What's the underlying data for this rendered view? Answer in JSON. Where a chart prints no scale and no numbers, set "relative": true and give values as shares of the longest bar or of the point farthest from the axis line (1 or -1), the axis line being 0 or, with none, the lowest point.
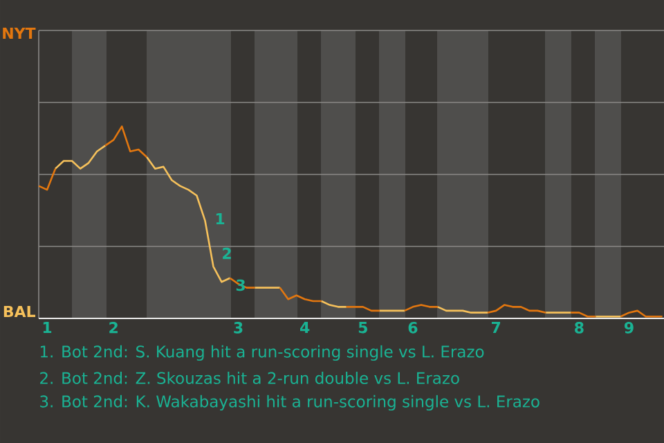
{
  "chart_data": {
    "type": "line",
    "relative": true,
    "categories": [
      null,
      "1",
      null,
      null,
      null,
      null,
      null,
      null,
      null,
      "2",
      null,
      null,
      null,
      null,
      null,
      null,
      null,
      null,
      null,
      null,
      null,
      null,
      null,
      null,
      "3",
      null,
      null,
      null,
      null,
      null,
      null,
      null,
      "4",
      null,
      null,
      null,
      null,
      null,
      null,
      "5",
      null,
      null,
      null,
      null,
      null,
      "6",
      null,
      null,
      null,
      null,
      null,
      null,
      null,
      null,
      null,
      "7",
      null,
      null,
      null,
      null,
      null,
      null,
      null,
      null,
      null,
      "8",
      null,
      null,
      null,
      null,
      null,
      "9",
      null,
      null,
      null,
      null
    ],
    "marker": "none",
    "line_style": "solid",
    "ref_lines": [
      {
        "axis": "y",
        "value": 0.375,
        "color": "#8a8886"
      },
      {
        "axis": "y",
        "value": 0.75,
        "color": "#8a8886"
      },
      {
        "axis": "y",
        "value": 1.125,
        "color": "#8a8886"
      },
      {
        "axis": "y",
        "value": 1.5,
        "color": "#8a8886"
      }
    ],
    "series": [
      {
        "color": "#e3770f",
        "values": [
          0.69,
          0.67,
          0.78,
          null,
          null,
          null,
          null,
          null,
          null,
          null,
          null,
          null,
          null,
          null,
          null,
          null,
          null,
          null,
          null,
          null,
          null,
          null,
          null,
          null,
          null,
          null,
          null,
          null,
          null,
          null,
          null,
          null,
          null,
          null,
          null,
          null,
          null,
          null,
          null,
          null,
          null,
          null,
          null,
          null,
          null,
          null,
          null,
          null,
          null,
          null,
          null,
          null,
          null,
          null,
          null,
          null,
          null,
          null,
          null,
          null,
          null,
          null,
          null,
          null,
          null,
          null,
          null,
          null,
          null,
          null,
          null,
          null,
          null,
          null,
          null,
          null
        ]
      },
      {
        "color": "#f6c15b",
        "values": [
          null,
          null,
          0.78,
          0.82,
          0.82,
          0.78,
          0.81,
          0.87,
          0.9,
          null,
          null,
          null,
          null,
          null,
          null,
          null,
          null,
          null,
          null,
          null,
          null,
          null,
          null,
          null,
          null,
          null,
          null,
          null,
          null,
          null,
          null,
          null,
          null,
          null,
          null,
          null,
          null,
          null,
          null,
          null,
          null,
          null,
          null,
          null,
          null,
          null,
          null,
          null,
          null,
          null,
          null,
          null,
          null,
          null,
          null,
          null,
          null,
          null,
          null,
          null,
          null,
          null,
          null,
          null,
          null,
          null,
          null,
          null,
          null,
          null,
          null,
          null,
          null,
          null,
          null,
          null
        ]
      },
      {
        "color": "#e3770f",
        "values": [
          null,
          null,
          null,
          null,
          null,
          null,
          null,
          null,
          0.9,
          0.93,
          1,
          0.87,
          0.88,
          0.84,
          null,
          null,
          null,
          null,
          null,
          null,
          null,
          null,
          null,
          null,
          null,
          null,
          null,
          null,
          null,
          null,
          null,
          null,
          null,
          null,
          null,
          null,
          null,
          null,
          null,
          null,
          null,
          null,
          null,
          null,
          null,
          null,
          null,
          null,
          null,
          null,
          null,
          null,
          null,
          null,
          null,
          null,
          null,
          null,
          null,
          null,
          null,
          null,
          null,
          null,
          null,
          null,
          null,
          null,
          null,
          null,
          null,
          null,
          null,
          null,
          null,
          null
        ]
      },
      {
        "color": "#f6c15b",
        "values": [
          null,
          null,
          null,
          null,
          null,
          null,
          null,
          null,
          null,
          null,
          null,
          null,
          null,
          0.84,
          0.78,
          0.79,
          0.72,
          0.69,
          0.67,
          0.64,
          0.51,
          0.27,
          0.19,
          0.21,
          null,
          null,
          null,
          null,
          null,
          null,
          null,
          null,
          null,
          null,
          null,
          null,
          null,
          null,
          null,
          null,
          null,
          null,
          null,
          null,
          null,
          null,
          null,
          null,
          null,
          null,
          null,
          null,
          null,
          null,
          null,
          null,
          null,
          null,
          null,
          null,
          null,
          null,
          null,
          null,
          null,
          null,
          null,
          null,
          null,
          null,
          null,
          null,
          null,
          null,
          null,
          null
        ]
      },
      {
        "color": "#e3770f",
        "values": [
          null,
          null,
          null,
          null,
          null,
          null,
          null,
          null,
          null,
          null,
          null,
          null,
          null,
          null,
          null,
          null,
          null,
          null,
          null,
          null,
          null,
          null,
          null,
          0.21,
          0.18,
          0.16,
          0.16,
          null,
          null,
          null,
          null,
          null,
          null,
          null,
          null,
          null,
          null,
          null,
          null,
          null,
          null,
          null,
          null,
          null,
          null,
          null,
          null,
          null,
          null,
          null,
          null,
          null,
          null,
          null,
          null,
          null,
          null,
          null,
          null,
          null,
          null,
          null,
          null,
          null,
          null,
          null,
          null,
          null,
          null,
          null,
          null,
          null,
          null,
          null,
          null,
          null
        ]
      },
      {
        "color": "#f6c15b",
        "values": [
          null,
          null,
          null,
          null,
          null,
          null,
          null,
          null,
          null,
          null,
          null,
          null,
          null,
          null,
          null,
          null,
          null,
          null,
          null,
          null,
          null,
          null,
          null,
          null,
          null,
          null,
          0.16,
          0.16,
          0.16,
          0.16,
          null,
          null,
          null,
          null,
          null,
          null,
          null,
          null,
          null,
          null,
          null,
          null,
          null,
          null,
          null,
          null,
          null,
          null,
          null,
          null,
          null,
          null,
          null,
          null,
          null,
          null,
          null,
          null,
          null,
          null,
          null,
          null,
          null,
          null,
          null,
          null,
          null,
          null,
          null,
          null,
          null,
          null,
          null,
          null,
          null,
          null
        ]
      },
      {
        "color": "#e3770f",
        "values": [
          null,
          null,
          null,
          null,
          null,
          null,
          null,
          null,
          null,
          null,
          null,
          null,
          null,
          null,
          null,
          null,
          null,
          null,
          null,
          null,
          null,
          null,
          null,
          null,
          null,
          null,
          null,
          null,
          null,
          0.16,
          0.1,
          0.12,
          0.1,
          0.09,
          0.09,
          null,
          null,
          null,
          null,
          null,
          null,
          null,
          null,
          null,
          null,
          null,
          null,
          null,
          null,
          null,
          null,
          null,
          null,
          null,
          null,
          null,
          null,
          null,
          null,
          null,
          null,
          null,
          null,
          null,
          null,
          null,
          null,
          null,
          null,
          null,
          null,
          null,
          null,
          null,
          null,
          null
        ]
      },
      {
        "color": "#f6c15b",
        "values": [
          null,
          null,
          null,
          null,
          null,
          null,
          null,
          null,
          null,
          null,
          null,
          null,
          null,
          null,
          null,
          null,
          null,
          null,
          null,
          null,
          null,
          null,
          null,
          null,
          null,
          null,
          null,
          null,
          null,
          null,
          null,
          null,
          null,
          null,
          0.09,
          0.07,
          0.06,
          0.06,
          null,
          null,
          null,
          null,
          null,
          null,
          null,
          null,
          null,
          null,
          null,
          null,
          null,
          null,
          null,
          null,
          null,
          null,
          null,
          null,
          null,
          null,
          null,
          null,
          null,
          null,
          null,
          null,
          null,
          null,
          null,
          null,
          null,
          null,
          null,
          null,
          null,
          null
        ]
      },
      {
        "color": "#e3770f",
        "values": [
          null,
          null,
          null,
          null,
          null,
          null,
          null,
          null,
          null,
          null,
          null,
          null,
          null,
          null,
          null,
          null,
          null,
          null,
          null,
          null,
          null,
          null,
          null,
          null,
          null,
          null,
          null,
          null,
          null,
          null,
          null,
          null,
          null,
          null,
          null,
          null,
          null,
          0.06,
          0.06,
          0.06,
          0.04,
          0.04,
          null,
          null,
          null,
          null,
          null,
          null,
          null,
          null,
          null,
          null,
          null,
          null,
          null,
          null,
          null,
          null,
          null,
          null,
          null,
          null,
          null,
          null,
          null,
          null,
          null,
          null,
          null,
          null,
          null,
          null,
          null,
          null,
          null,
          null
        ]
      },
      {
        "color": "#f6c15b",
        "values": [
          null,
          null,
          null,
          null,
          null,
          null,
          null,
          null,
          null,
          null,
          null,
          null,
          null,
          null,
          null,
          null,
          null,
          null,
          null,
          null,
          null,
          null,
          null,
          null,
          null,
          null,
          null,
          null,
          null,
          null,
          null,
          null,
          null,
          null,
          null,
          null,
          null,
          null,
          null,
          null,
          null,
          0.04,
          0.04,
          0.04,
          0.04,
          null,
          null,
          null,
          null,
          null,
          null,
          null,
          null,
          null,
          null,
          null,
          null,
          null,
          null,
          null,
          null,
          null,
          null,
          null,
          null,
          null,
          null,
          null,
          null,
          null,
          null,
          null,
          null,
          null,
          null,
          null
        ]
      },
      {
        "color": "#e3770f",
        "values": [
          null,
          null,
          null,
          null,
          null,
          null,
          null,
          null,
          null,
          null,
          null,
          null,
          null,
          null,
          null,
          null,
          null,
          null,
          null,
          null,
          null,
          null,
          null,
          null,
          null,
          null,
          null,
          null,
          null,
          null,
          null,
          null,
          null,
          null,
          null,
          null,
          null,
          null,
          null,
          null,
          null,
          null,
          null,
          null,
          0.04,
          0.06,
          0.07,
          0.06,
          0.06,
          null,
          null,
          null,
          null,
          null,
          null,
          null,
          null,
          null,
          null,
          null,
          null,
          null,
          null,
          null,
          null,
          null,
          null,
          null,
          null,
          null,
          null,
          null,
          null,
          null,
          null,
          null
        ]
      },
      {
        "color": "#f6c15b",
        "values": [
          null,
          null,
          null,
          null,
          null,
          null,
          null,
          null,
          null,
          null,
          null,
          null,
          null,
          null,
          null,
          null,
          null,
          null,
          null,
          null,
          null,
          null,
          null,
          null,
          null,
          null,
          null,
          null,
          null,
          null,
          null,
          null,
          null,
          null,
          null,
          null,
          null,
          null,
          null,
          null,
          null,
          null,
          null,
          null,
          null,
          null,
          null,
          null,
          0.06,
          0.04,
          0.04,
          0.04,
          0.03,
          0.03,
          0.03,
          null,
          null,
          null,
          null,
          null,
          null,
          null,
          null,
          null,
          null,
          null,
          null,
          null,
          null,
          null,
          null,
          null,
          null,
          null,
          null,
          null
        ]
      },
      {
        "color": "#e3770f",
        "values": [
          null,
          null,
          null,
          null,
          null,
          null,
          null,
          null,
          null,
          null,
          null,
          null,
          null,
          null,
          null,
          null,
          null,
          null,
          null,
          null,
          null,
          null,
          null,
          null,
          null,
          null,
          null,
          null,
          null,
          null,
          null,
          null,
          null,
          null,
          null,
          null,
          null,
          null,
          null,
          null,
          null,
          null,
          null,
          null,
          null,
          null,
          null,
          null,
          null,
          null,
          null,
          null,
          null,
          null,
          0.03,
          0.04,
          0.07,
          0.06,
          0.06,
          0.04,
          0.04,
          0.03,
          null,
          null,
          null,
          null,
          null,
          null,
          null,
          null,
          null,
          null,
          null,
          null,
          null,
          null
        ]
      },
      {
        "color": "#f6c15b",
        "values": [
          null,
          null,
          null,
          null,
          null,
          null,
          null,
          null,
          null,
          null,
          null,
          null,
          null,
          null,
          null,
          null,
          null,
          null,
          null,
          null,
          null,
          null,
          null,
          null,
          null,
          null,
          null,
          null,
          null,
          null,
          null,
          null,
          null,
          null,
          null,
          null,
          null,
          null,
          null,
          null,
          null,
          null,
          null,
          null,
          null,
          null,
          null,
          null,
          null,
          null,
          null,
          null,
          null,
          null,
          null,
          null,
          null,
          null,
          null,
          null,
          null,
          0.03,
          0.03,
          0.03,
          0.03,
          null,
          null,
          null,
          null,
          null,
          null,
          null,
          null,
          null,
          null,
          null
        ]
      },
      {
        "color": "#e3770f",
        "values": [
          null,
          null,
          null,
          null,
          null,
          null,
          null,
          null,
          null,
          null,
          null,
          null,
          null,
          null,
          null,
          null,
          null,
          null,
          null,
          null,
          null,
          null,
          null,
          null,
          null,
          null,
          null,
          null,
          null,
          null,
          null,
          null,
          null,
          null,
          null,
          null,
          null,
          null,
          null,
          null,
          null,
          null,
          null,
          null,
          null,
          null,
          null,
          null,
          null,
          null,
          null,
          null,
          null,
          null,
          null,
          null,
          null,
          null,
          null,
          null,
          null,
          null,
          null,
          null,
          0.03,
          0.03,
          0.01,
          0.01,
          null,
          null,
          null,
          null,
          null,
          null,
          null,
          null
        ]
      },
      {
        "color": "#f6c15b",
        "values": [
          null,
          null,
          null,
          null,
          null,
          null,
          null,
          null,
          null,
          null,
          null,
          null,
          null,
          null,
          null,
          null,
          null,
          null,
          null,
          null,
          null,
          null,
          null,
          null,
          null,
          null,
          null,
          null,
          null,
          null,
          null,
          null,
          null,
          null,
          null,
          null,
          null,
          null,
          null,
          null,
          null,
          null,
          null,
          null,
          null,
          null,
          null,
          null,
          null,
          null,
          null,
          null,
          null,
          null,
          null,
          null,
          null,
          null,
          null,
          null,
          null,
          null,
          null,
          null,
          null,
          null,
          null,
          0.01,
          0.01,
          0.01,
          0.01,
          null,
          null,
          null,
          null,
          null
        ]
      },
      {
        "color": "#e3770f",
        "values": [
          null,
          null,
          null,
          null,
          null,
          null,
          null,
          null,
          null,
          null,
          null,
          null,
          null,
          null,
          null,
          null,
          null,
          null,
          null,
          null,
          null,
          null,
          null,
          null,
          null,
          null,
          null,
          null,
          null,
          null,
          null,
          null,
          null,
          null,
          null,
          null,
          null,
          null,
          null,
          null,
          null,
          null,
          null,
          null,
          null,
          null,
          null,
          null,
          null,
          null,
          null,
          null,
          null,
          null,
          null,
          null,
          null,
          null,
          null,
          null,
          null,
          null,
          null,
          null,
          null,
          null,
          null,
          null,
          null,
          null,
          0.01,
          0.03,
          0.04,
          0.01,
          0.01,
          0.01
        ]
      }
    ],
    "annotations": [
      "NYT",
      "BAL",
      "1",
      "2",
      "3",
      "1. Bot 2nd: S. Kuang hit a run-scoring single vs L. Erazo",
      "2. Bot 2nd: Z. Skouzas hit a 2-run double vs L. Erazo",
      "3. Bot 2nd: K. Wakabayashi hit a run-scoring single vs L. Erazo"
    ]
  }
}
